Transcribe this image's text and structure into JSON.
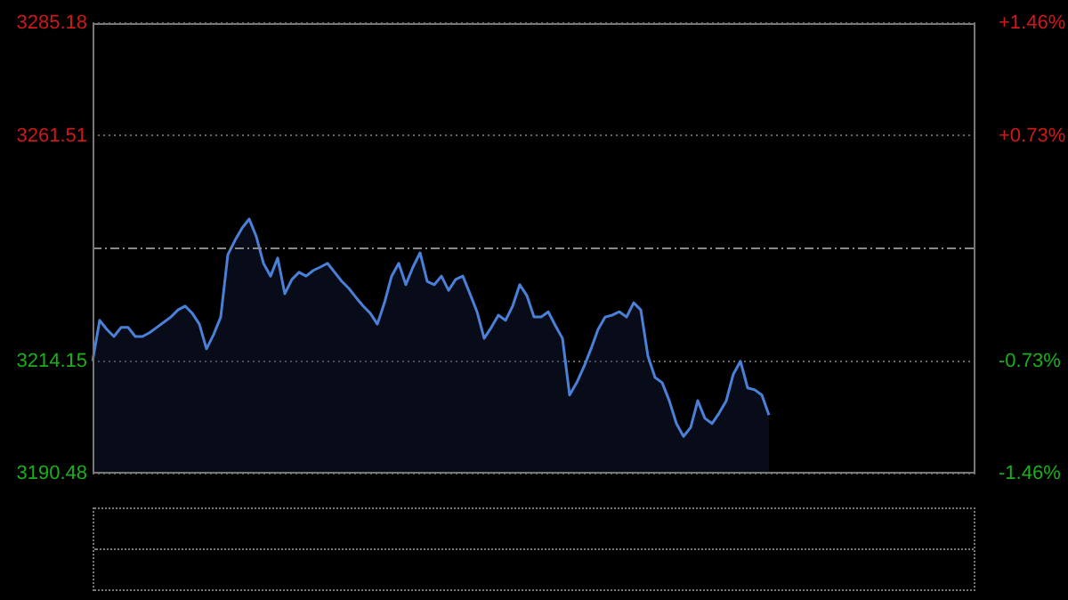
{
  "chart_data": {
    "type": "area",
    "categories": [
      null,
      null,
      null,
      null,
      null,
      null,
      null,
      null,
      null,
      null,
      null,
      null,
      null,
      null,
      null,
      null,
      null,
      null,
      null,
      null,
      null,
      null,
      null,
      null,
      null,
      null,
      null,
      null,
      null,
      null,
      null,
      null,
      null,
      null,
      null,
      null,
      null,
      null,
      null,
      null,
      null,
      null,
      null,
      null,
      null,
      null,
      null,
      null,
      null,
      null,
      null,
      null,
      null,
      null,
      null,
      null,
      null,
      null,
      null,
      null,
      null,
      null,
      null,
      null,
      null,
      null,
      null,
      null,
      null,
      null,
      null,
      null,
      null,
      null,
      null,
      null,
      null,
      null,
      null,
      null,
      null,
      null,
      null,
      null,
      null,
      null,
      null,
      null,
      null,
      null,
      null,
      null,
      null,
      null,
      null,
      null,
      null,
      null,
      null,
      null,
      null,
      null,
      null,
      null,
      null,
      null,
      null,
      null,
      null,
      null,
      null,
      null,
      null,
      null,
      null,
      null,
      null,
      null,
      null,
      null,
      null,
      null,
      null,
      null,
      null
    ],
    "series": [
      {
        "color": "#4a80d8",
        "values": [
          3214.1,
          3222.7,
          3220.8,
          3219.3,
          3221.2,
          3221.2,
          3219.3,
          3219.3,
          3220.1,
          3221.2,
          3222.3,
          3223.4,
          3224.9,
          3225.7,
          3224.2,
          3221.9,
          3216.7,
          3219.7,
          3223.4,
          3236.5,
          3239.5,
          3242.1,
          3244.0,
          3240.3,
          3234.7,
          3232.0,
          3235.8,
          3228.3,
          3231.3,
          3232.8,
          3232.0,
          3233.2,
          3233.9,
          3234.7,
          3232.8,
          3230.9,
          3229.4,
          3227.5,
          3225.7,
          3224.2,
          3221.9,
          3226.4,
          3232.0,
          3234.7,
          3230.2,
          3233.9,
          3236.9,
          3230.9,
          3230.2,
          3232.0,
          3229.0,
          3231.3,
          3232.0,
          3228.3,
          3224.5,
          3218.9,
          3221.2,
          3223.8,
          3222.7,
          3225.7,
          3230.2,
          3227.9,
          3223.4,
          3223.4,
          3224.5,
          3221.6,
          3218.9,
          3207.0,
          3209.6,
          3212.9,
          3216.7,
          3220.8,
          3223.4,
          3223.8,
          3224.5,
          3223.4,
          3226.4,
          3224.9,
          3215.2,
          3210.7,
          3209.6,
          3205.8,
          3201.0,
          3198.3,
          3200.2,
          3205.8,
          3202.1,
          3201.0,
          3203.2,
          3205.8,
          3211.4,
          3214.1,
          3208.5,
          3208.1,
          3207.0,
          3202.8,
          null,
          null,
          null,
          null,
          null,
          null,
          null,
          null,
          null,
          null,
          null,
          null,
          null,
          null,
          null,
          null,
          null,
          null,
          null,
          null,
          null,
          null,
          null,
          null,
          null,
          null,
          null,
          null,
          null
        ]
      }
    ],
    "ylim": [
      3190.48,
      3285.18
    ],
    "yticks": [
      3190.48,
      3214.15,
      3261.51,
      3285.18
    ],
    "y2lim": [
      -1.46,
      1.46
    ],
    "y2ticks": [
      {
        "value": -1.46,
        "label": "-1.46%"
      },
      {
        "value": -0.73,
        "label": "-0.73%"
      },
      {
        "value": 0.73,
        "label": "+0.73%"
      },
      {
        "value": 1.46,
        "label": "+1.46%"
      }
    ],
    "ref_lines": [
      {
        "axis": "y",
        "value": 3237.83,
        "color": "#888888",
        "line_style": "dashed"
      }
    ],
    "tick_labels": "y",
    "grid": "y",
    "legend": false,
    "marker": "none",
    "line_style": "solid"
  }
}
